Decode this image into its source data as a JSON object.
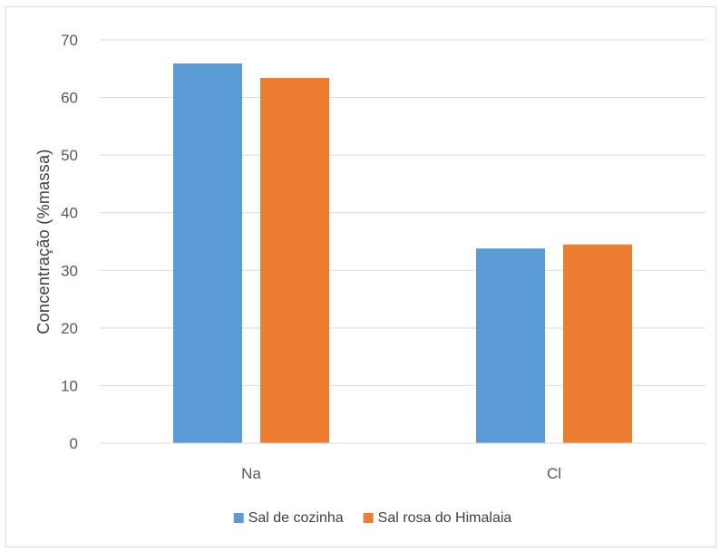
{
  "chart_data": {
    "type": "bar",
    "categories": [
      "Na",
      "Cl"
    ],
    "series": [
      {
        "name": "Sal de cozinha",
        "values": [
          65.9,
          33.8
        ],
        "color": "#5b9bd5"
      },
      {
        "name": "Sal rosa do Himalaia",
        "values": [
          63.4,
          34.5
        ],
        "color": "#ed7d31"
      }
    ],
    "title": "",
    "xlabel": "",
    "ylabel": "Concentração (%massa)",
    "ylim": [
      0,
      70
    ],
    "yticks": [
      0,
      10,
      20,
      30,
      40,
      50,
      60,
      70
    ],
    "grid": true,
    "legend_position": "bottom",
    "gridline_color": "#d9d9d9",
    "tick_label_color": "#595959"
  }
}
